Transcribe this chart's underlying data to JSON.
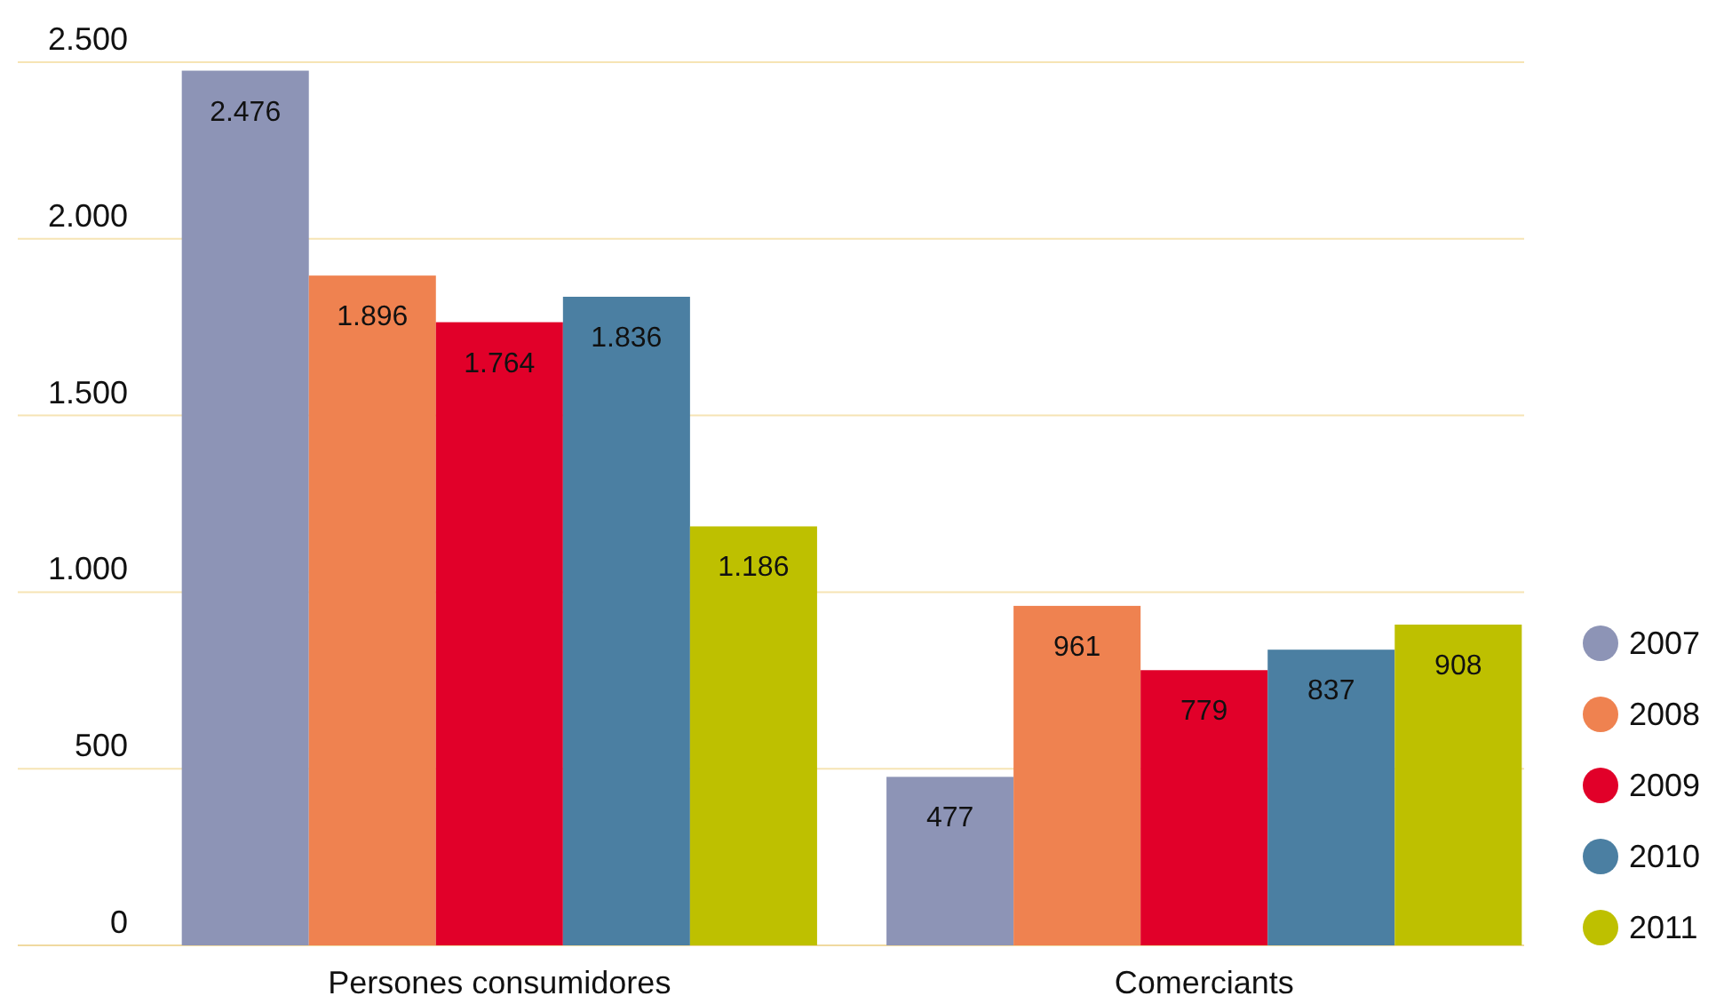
{
  "chart_data": {
    "type": "bar",
    "categories": [
      "Persones consumidores",
      "Comerciants"
    ],
    "series": [
      {
        "name": "2007",
        "color": "#8d94b6",
        "values": [
          2476,
          477
        ],
        "value_labels": [
          "2.476",
          "477"
        ]
      },
      {
        "name": "2008",
        "color": "#ef8250",
        "values": [
          1896,
          961
        ],
        "value_labels": [
          "1.896",
          "961"
        ]
      },
      {
        "name": "2009",
        "color": "#e10029",
        "values": [
          1764,
          779
        ],
        "value_labels": [
          "1.764",
          "779"
        ]
      },
      {
        "name": "2010",
        "color": "#4b7fa2",
        "values": [
          1836,
          837
        ],
        "value_labels": [
          "1.836",
          "837"
        ]
      },
      {
        "name": "2011",
        "color": "#bec000",
        "values": [
          1186,
          908
        ],
        "value_labels": [
          "1.186",
          "908"
        ]
      }
    ],
    "ylim": [
      0,
      2500
    ],
    "yticks": [
      {
        "value": 0,
        "label": "0"
      },
      {
        "value": 500,
        "label": "500"
      },
      {
        "value": 1000,
        "label": "1.000"
      },
      {
        "value": 1500,
        "label": "1.500"
      },
      {
        "value": 2000,
        "label": "2.000"
      },
      {
        "value": 2500,
        "label": "2.500"
      }
    ],
    "grid": "y",
    "legend": "bottom right"
  }
}
